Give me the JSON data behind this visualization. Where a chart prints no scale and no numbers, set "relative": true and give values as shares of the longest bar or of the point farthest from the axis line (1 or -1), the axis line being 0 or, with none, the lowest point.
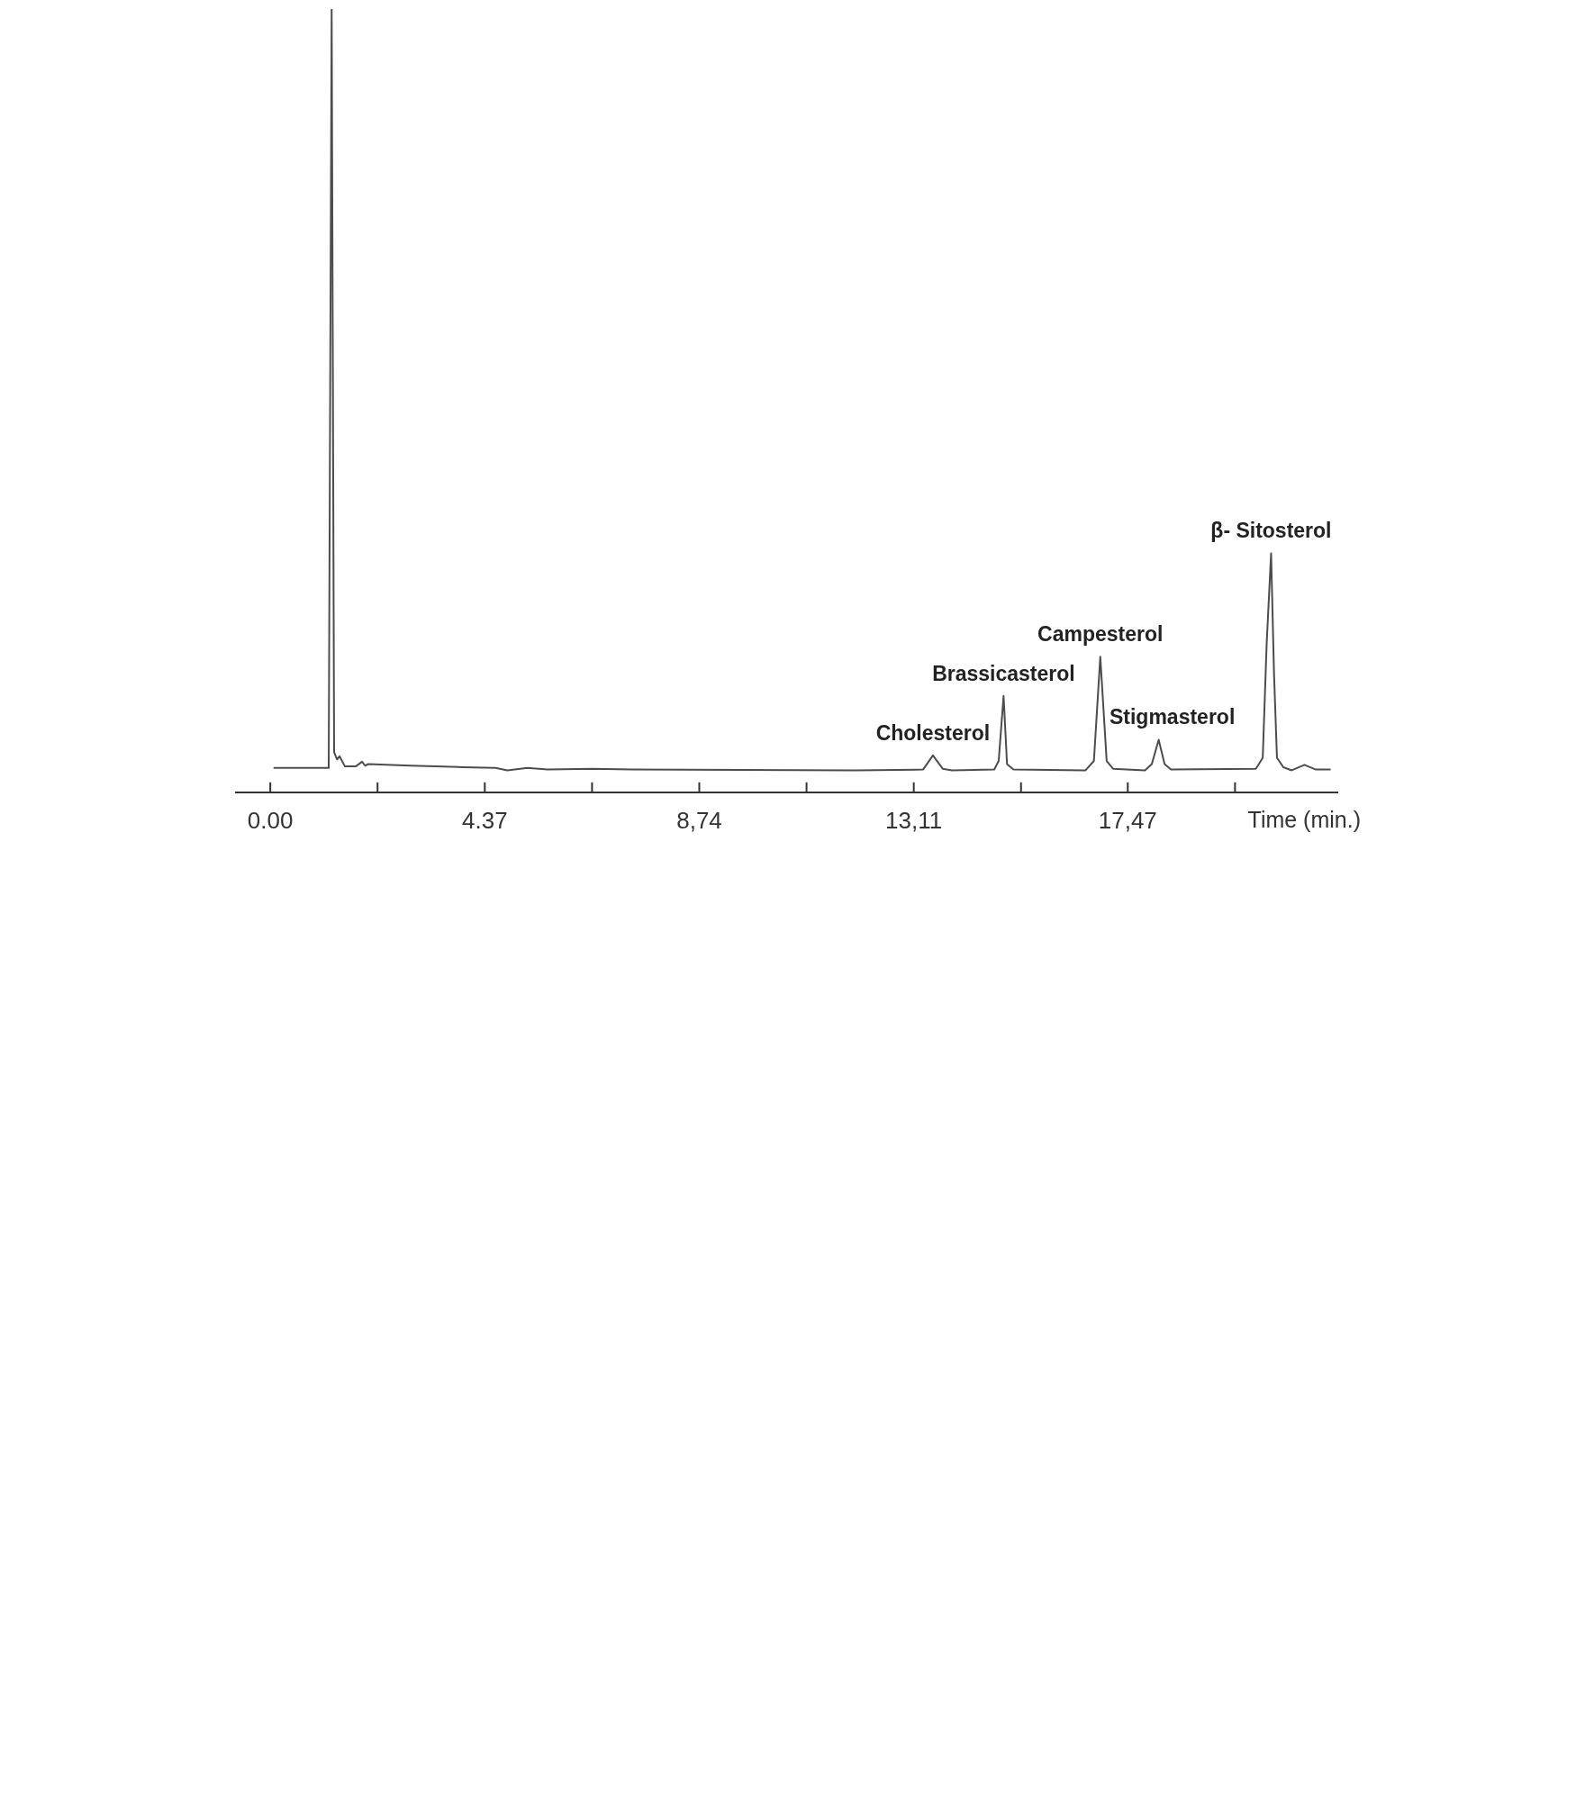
{
  "chart_data": {
    "type": "line",
    "xlabel": "Time (min.)",
    "relative": true,
    "marker": "none",
    "color": "#4d4d4d",
    "x": [
      0.08,
      1.19,
      1.25,
      1.3,
      1.36,
      1.41,
      1.52,
      1.74,
      1.87,
      1.93,
      2.0,
      2.86,
      3.93,
      4.59,
      4.83,
      5.24,
      5.65,
      6.55,
      7.37,
      11.93,
      13.3,
      13.5,
      13.7,
      13.89,
      14.75,
      14.84,
      14.94,
      15.01,
      15.14,
      16.61,
      16.78,
      16.91,
      17.04,
      17.17,
      17.82,
      17.96,
      18.1,
      18.22,
      18.35,
      20.08,
      20.22,
      20.3,
      20.39,
      20.45,
      20.51,
      20.64,
      20.81,
      21.07,
      21.3,
      21.59
    ],
    "values": [
      0.031,
      0.031,
      1.0,
      0.051,
      0.042,
      0.046,
      0.033,
      0.033,
      0.039,
      0.034,
      0.036,
      0.034,
      0.032,
      0.031,
      0.028,
      0.031,
      0.029,
      0.03,
      0.029,
      0.028,
      0.029,
      0.047,
      0.03,
      0.028,
      0.029,
      0.04,
      0.123,
      0.036,
      0.029,
      0.028,
      0.04,
      0.173,
      0.04,
      0.03,
      0.028,
      0.036,
      0.067,
      0.036,
      0.029,
      0.03,
      0.044,
      0.19,
      0.305,
      0.151,
      0.044,
      0.032,
      0.028,
      0.035,
      0.029,
      0.029
    ],
    "xlim": [
      -0.7,
      21.74
    ],
    "xticks": [
      {
        "value": 0,
        "label": "0.00"
      },
      {
        "value": 2.185,
        "label": null
      },
      4.37,
      {
        "value": 6.555,
        "label": null
      },
      {
        "value": 8.74,
        "label": "8,74"
      },
      {
        "value": 10.925,
        "label": null
      },
      {
        "value": 13.11,
        "label": "13,11"
      },
      {
        "value": 15.295,
        "label": null
      },
      {
        "value": 17.47,
        "label": "17,47"
      },
      {
        "value": 19.655,
        "label": null
      }
    ],
    "annotations": [
      {
        "text": "Cholesterol",
        "x": 13.5,
        "y": 0.047
      },
      {
        "text": "Brassicasterol",
        "x": 14.94,
        "y": 0.123
      },
      {
        "text": "Campesterol",
        "x": 16.91,
        "y": 0.173
      },
      {
        "text": "Stigmasterol",
        "x": 18.1,
        "y": 0.067
      },
      {
        "text": "β- Sitosterol",
        "x": 20.39,
        "y": 0.305
      }
    ]
  }
}
